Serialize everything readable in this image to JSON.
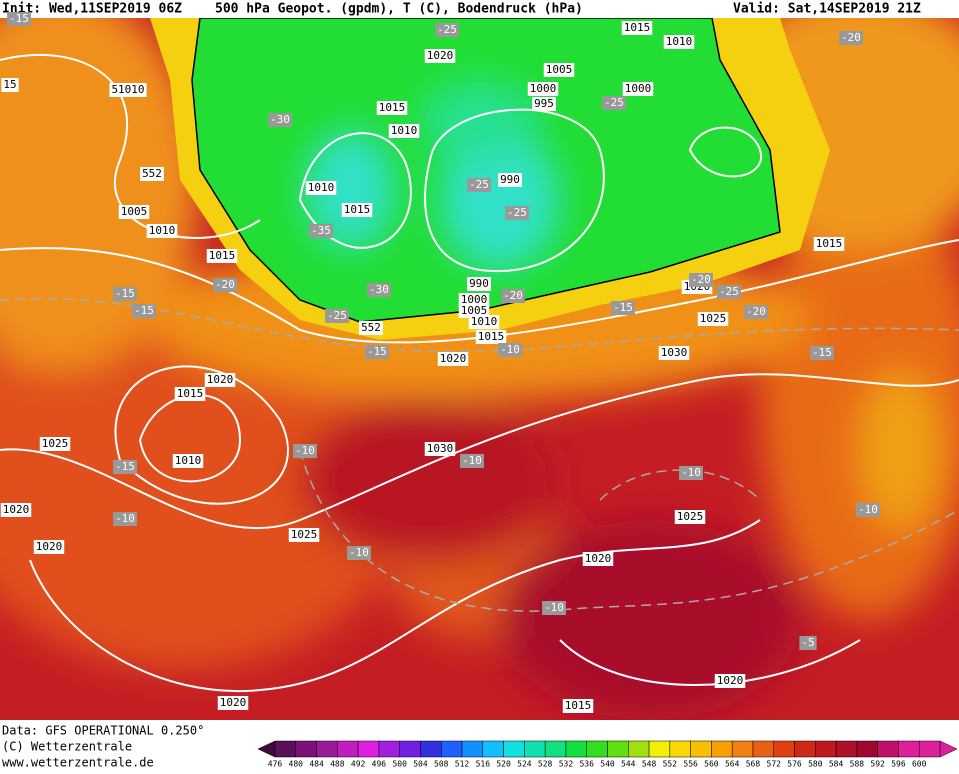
{
  "header": {
    "init": "Init: Wed,11SEP2019 06Z",
    "title": "500 hPa Geopot. (gpdm), T (C), Bodendruck (hPa)",
    "valid": "Valid: Sat,14SEP2019 21Z"
  },
  "footer": {
    "data": "Data: GFS OPERATIONAL 0.250°",
    "copyright": "(C) Wetterzentrale",
    "url": "www.wetterzentrale.de"
  },
  "colorbar": {
    "labels": [
      476,
      480,
      484,
      488,
      492,
      496,
      500,
      504,
      508,
      512,
      516,
      520,
      524,
      528,
      532,
      536,
      540,
      544,
      548,
      552,
      556,
      560,
      564,
      568,
      572,
      576,
      580,
      584,
      588,
      592,
      596,
      600
    ],
    "colors": [
      "#3c0a3c",
      "#5a0f5a",
      "#7a127a",
      "#9a1a9a",
      "#c01ec0",
      "#e020e0",
      "#a020e0",
      "#7020e0",
      "#3030e0",
      "#2060ff",
      "#1090ff",
      "#10c0ff",
      "#10e0e0",
      "#10e0b0",
      "#10e080",
      "#10e040",
      "#30e020",
      "#60e010",
      "#a0e010",
      "#f0f000",
      "#f8d800",
      "#f8c000",
      "#f8a000",
      "#f08010",
      "#e86010",
      "#e04010",
      "#d02818",
      "#c01820",
      "#b01028",
      "#a00830",
      "#c0106a",
      "#e0209a"
    ]
  },
  "isobar_labels": [
    "1015",
    "1010",
    "1020",
    "1005",
    "1000",
    "995",
    "1000",
    "1015",
    "1010",
    "51010",
    "1005",
    "1010",
    "1015",
    "1010",
    "1015",
    "990",
    "990",
    "1000",
    "1005",
    "1010",
    "1015",
    "1020",
    "1020",
    "1025",
    "1030",
    "1015",
    "1020",
    "1015",
    "1025",
    "1010",
    "1030",
    "1020",
    "1025",
    "1025",
    "1020",
    "1020",
    "1020",
    "1020",
    "1015",
    "15"
  ],
  "height_labels": [
    "552",
    "552"
  ],
  "temperature_labels": [
    "-25",
    "-20",
    "-25",
    "-30",
    "-25",
    "-25",
    "-35",
    "-30",
    "-25",
    "-15",
    "-20",
    "-20",
    "-15",
    "-20",
    "-25",
    "-20",
    "-15",
    "-10",
    "-15",
    "-15",
    "-10",
    "-10",
    "-10",
    "-10",
    "-15",
    "-10",
    "-10",
    "-10",
    "-5",
    "-15"
  ]
}
